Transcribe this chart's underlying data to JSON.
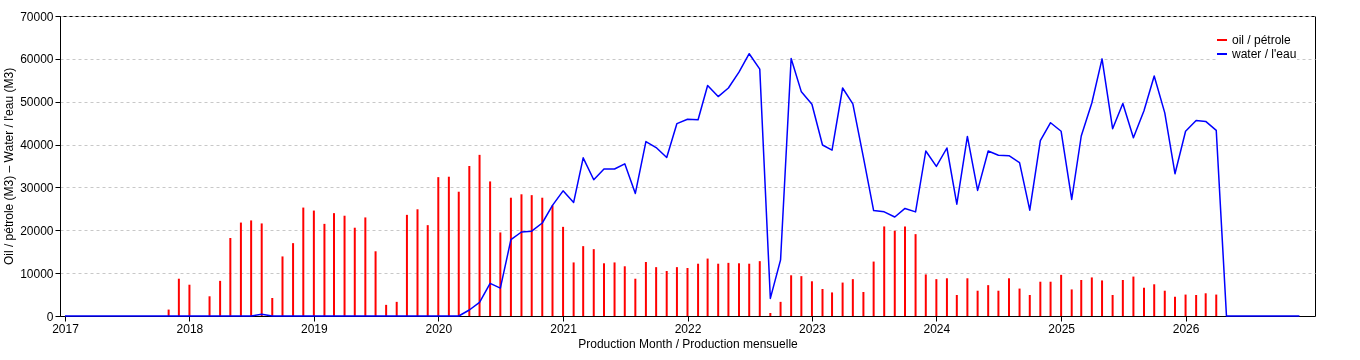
{
  "chart_data": {
    "type": "bar",
    "xlabel": "Production Month / Production mensuelle",
    "ylabel": "Oil / pétrole (M3)  –  Water / l'eau (M3)",
    "xlim": [
      "2017-01",
      "2027-01"
    ],
    "xticks": [
      "2017",
      "2018",
      "2019",
      "2020",
      "2021",
      "2022",
      "2023",
      "2024",
      "2025",
      "2026"
    ],
    "ylim": [
      0,
      70000
    ],
    "yticks": [
      0,
      10000,
      20000,
      30000,
      40000,
      50000,
      60000,
      70000
    ],
    "grid": "y",
    "legend": "top right",
    "x": [
      "2017-01",
      "2017-02",
      "2017-03",
      "2017-04",
      "2017-05",
      "2017-06",
      "2017-07",
      "2017-08",
      "2017-09",
      "2017-10",
      "2017-11",
      "2017-12",
      "2018-01",
      "2018-02",
      "2018-03",
      "2018-04",
      "2018-05",
      "2018-06",
      "2018-07",
      "2018-08",
      "2018-09",
      "2018-10",
      "2018-11",
      "2018-12",
      "2019-01",
      "2019-02",
      "2019-03",
      "2019-04",
      "2019-05",
      "2019-06",
      "2019-07",
      "2019-08",
      "2019-09",
      "2019-10",
      "2019-11",
      "2019-12",
      "2020-01",
      "2020-02",
      "2020-03",
      "2020-04",
      "2020-05",
      "2020-06",
      "2020-07",
      "2020-08",
      "2020-09",
      "2020-10",
      "2020-11",
      "2020-12",
      "2021-01",
      "2021-02",
      "2021-03",
      "2021-04",
      "2021-05",
      "2021-06",
      "2021-07",
      "2021-08",
      "2021-09",
      "2021-10",
      "2021-11",
      "2021-12",
      "2022-01",
      "2022-02",
      "2022-03",
      "2022-04",
      "2022-05",
      "2022-06",
      "2022-07",
      "2022-08",
      "2022-09",
      "2022-10",
      "2022-11",
      "2022-12",
      "2023-01",
      "2023-02",
      "2023-03",
      "2023-04",
      "2023-05",
      "2023-06",
      "2023-07",
      "2023-08",
      "2023-09",
      "2023-10",
      "2023-11",
      "2023-12",
      "2024-01",
      "2024-02",
      "2024-03",
      "2024-04",
      "2024-05",
      "2024-06",
      "2024-07",
      "2024-08",
      "2024-09",
      "2024-10",
      "2024-11",
      "2024-12",
      "2025-01",
      "2025-02",
      "2025-03",
      "2025-04",
      "2025-05",
      "2025-06",
      "2025-07",
      "2025-08",
      "2025-09",
      "2025-10",
      "2025-11",
      "2025-12",
      "2026-01",
      "2026-02",
      "2026-03",
      "2026-04",
      "2026-05",
      "2026-06",
      "2026-07",
      "2026-08",
      "2026-09",
      "2026-10",
      "2026-11",
      "2026-12"
    ],
    "series": [
      {
        "name": "oil / pétrole",
        "color": "#ff0000",
        "values": [
          null,
          null,
          null,
          null,
          null,
          null,
          null,
          null,
          null,
          null,
          1500,
          8700,
          7300,
          null,
          4600,
          8200,
          18200,
          21800,
          22300,
          21600,
          4200,
          13900,
          17000,
          25300,
          24600,
          21500,
          24000,
          23400,
          20600,
          23000,
          15100,
          2600,
          3300,
          23600,
          24900,
          21200,
          32400,
          32500,
          29000,
          35000,
          37600,
          31400,
          19500,
          27600,
          28400,
          28200,
          27600,
          25800,
          20800,
          12500,
          16300,
          15600,
          12300,
          12500,
          11600,
          8700,
          12600,
          11400,
          10500,
          11400,
          11200,
          12200,
          13400,
          12200,
          12400,
          12300,
          12200,
          12800,
          700,
          3300,
          9500,
          9300,
          8100,
          6300,
          5500,
          7800,
          8600,
          5600,
          12700,
          20900,
          19900,
          20900,
          19100,
          9700,
          8600,
          8800,
          4900,
          8800,
          5900,
          7200,
          5900,
          8800,
          6400,
          4900,
          8000,
          8000,
          9600,
          6200,
          8400,
          9000,
          8300,
          4900,
          8400,
          9200,
          6600,
          7400,
          5900,
          4500,
          5000,
          4900,
          5300,
          5000,
          null,
          null,
          null,
          null,
          null,
          null,
          null,
          null
        ]
      },
      {
        "name": "water / l'eau",
        "type": "line",
        "color": "#0000ff",
        "values": [
          0,
          0,
          0,
          0,
          0,
          0,
          0,
          0,
          0,
          0,
          0,
          0,
          0,
          0,
          0,
          0,
          0,
          0,
          0,
          400,
          0,
          0,
          0,
          0,
          0,
          0,
          0,
          0,
          0,
          0,
          0,
          0,
          0,
          0,
          0,
          0,
          0,
          0,
          0,
          1400,
          3200,
          7600,
          6500,
          17800,
          19600,
          19800,
          21700,
          25800,
          29200,
          26500,
          36900,
          31800,
          34300,
          34300,
          35500,
          28600,
          40700,
          39300,
          37000,
          44900,
          45900,
          45800,
          53800,
          51200,
          53200,
          56900,
          61200,
          57600,
          4100,
          13100,
          60100,
          52300,
          49400,
          39900,
          38700,
          53200,
          49500,
          37000,
          24600,
          24300,
          23100,
          25100,
          24300,
          38500,
          34900,
          39200,
          26100,
          41900,
          29300,
          38500,
          37500,
          37400,
          35800,
          24700,
          40900,
          45100,
          43100,
          27200,
          42000,
          49700,
          60000,
          43700,
          49600,
          41600,
          47900,
          56000,
          47400,
          33200,
          43100,
          45600,
          45400,
          43300,
          0,
          0,
          0,
          0,
          0,
          0,
          0,
          0
        ]
      }
    ]
  }
}
